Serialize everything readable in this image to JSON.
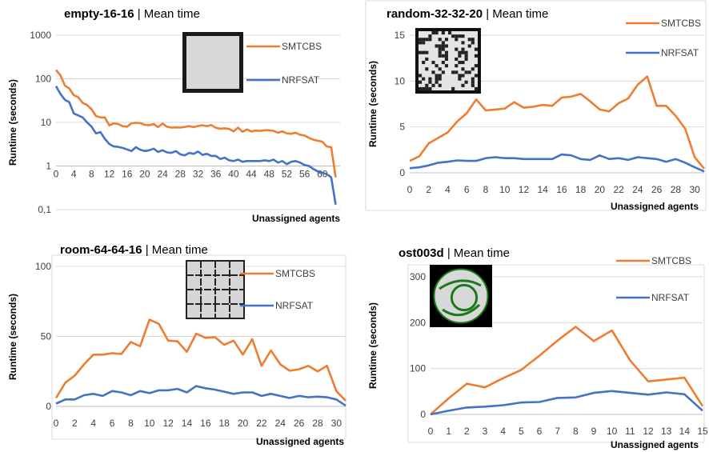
{
  "colors": {
    "smtcbs": "#ED7D31",
    "nrfsat": "#4472C4",
    "grid": "#D9D9D9",
    "axis": "#BFBFBF"
  },
  "chart_data": [
    {
      "type": "line",
      "title_bold": "empty-16-16",
      "title_rest": "| Mean time",
      "ylabel": "Runtime (seconds)",
      "xlabel": "Unassigned agents",
      "yscale": "log",
      "ylim": [
        0.1,
        1000
      ],
      "yticks": [
        0.1,
        1,
        10,
        100,
        1000
      ],
      "ytick_labels": [
        "0,1",
        "1",
        "10",
        "100",
        "1000"
      ],
      "xlim": [
        0,
        64
      ],
      "xticks": [
        0,
        4,
        8,
        12,
        16,
        20,
        24,
        28,
        32,
        36,
        40,
        44,
        48,
        52,
        56,
        60
      ],
      "thumbnail": "empty-grid-map",
      "x": [
        0,
        1,
        2,
        3,
        4,
        5,
        6,
        7,
        8,
        9,
        10,
        11,
        12,
        13,
        14,
        15,
        16,
        17,
        18,
        19,
        20,
        21,
        22,
        23,
        24,
        25,
        26,
        27,
        28,
        29,
        30,
        31,
        32,
        33,
        34,
        35,
        36,
        37,
        38,
        39,
        40,
        41,
        42,
        43,
        44,
        45,
        46,
        47,
        48,
        49,
        50,
        51,
        52,
        53,
        54,
        55,
        56,
        57,
        58,
        59,
        60,
        61,
        62,
        63
      ],
      "series": [
        {
          "name": "SMTCBS",
          "values": [
            160,
            120,
            70,
            60,
            42,
            38,
            28,
            25,
            20,
            14,
            13,
            13,
            8.5,
            9.5,
            9.2,
            8.2,
            8,
            9.5,
            9.8,
            9.6,
            8.8,
            8.6,
            9.2,
            7.8,
            9.4,
            8,
            7.6,
            7.7,
            7.6,
            7.9,
            8.2,
            7.8,
            8.3,
            8.6,
            8.2,
            8.7,
            7.5,
            7.2,
            7.3,
            7.1,
            6.2,
            7.6,
            6.1,
            6.9,
            6.2,
            6.5,
            6.4,
            6.6,
            6.6,
            6.4,
            5.8,
            6.2,
            5.6,
            5.5,
            5.8,
            5.2,
            5,
            4.4,
            4,
            3.8,
            3.6,
            2.8,
            2.7,
            0.55
          ]
        },
        {
          "name": "NRFSAT",
          "values": [
            68,
            45,
            33,
            29,
            16,
            14.5,
            13,
            10,
            8,
            5.6,
            6,
            4.2,
            3.2,
            2.8,
            2.75,
            2.6,
            2.4,
            2.2,
            2.7,
            2.35,
            2.2,
            2.3,
            2.5,
            2.1,
            2.3,
            2.05,
            2,
            2.2,
            1.85,
            1.75,
            2.0,
            1.9,
            2.15,
            1.8,
            1.9,
            1.7,
            1.7,
            1.45,
            1.55,
            1.35,
            1.3,
            1.4,
            1.25,
            1.3,
            1.3,
            1.3,
            1.3,
            1.35,
            1.3,
            1.4,
            1.2,
            1.3,
            1.1,
            1.25,
            1.3,
            1.2,
            1.05,
            1.0,
            0.85,
            0.75,
            0.7,
            0.65,
            0.55,
            0.13
          ]
        }
      ]
    },
    {
      "type": "line",
      "title_bold": "random-32-32-20",
      "title_rest": "| Mean time",
      "ylabel": "Runtime (seconds)",
      "xlabel": "Unassigned agents",
      "ylim": [
        0,
        15
      ],
      "yticks": [
        0,
        5,
        10,
        15
      ],
      "xlim": [
        0,
        31
      ],
      "xticks": [
        0,
        2,
        4,
        6,
        8,
        10,
        12,
        14,
        16,
        18,
        20,
        22,
        24,
        26,
        28,
        30
      ],
      "thumbnail": "random-grid-map",
      "x": [
        0,
        1,
        2,
        3,
        4,
        5,
        6,
        7,
        8,
        9,
        10,
        11,
        12,
        13,
        14,
        15,
        16,
        17,
        18,
        19,
        20,
        21,
        22,
        23,
        24,
        25,
        26,
        27,
        28,
        29,
        30,
        31
      ],
      "series": [
        {
          "name": "SMTCBS",
          "values": [
            1.3,
            1.8,
            3.2,
            3.8,
            4.4,
            5.6,
            6.5,
            8.0,
            6.8,
            6.9,
            7.0,
            7.7,
            7.1,
            7.2,
            7.4,
            7.3,
            8.2,
            8.3,
            8.6,
            7.8,
            6.9,
            6.7,
            7.6,
            8.1,
            9.6,
            10.5,
            7.3,
            7.3,
            6.2,
            4.8,
            1.7,
            0.45
          ]
        },
        {
          "name": "NRFSAT",
          "values": [
            0.5,
            0.6,
            0.8,
            1.1,
            1.2,
            1.35,
            1.3,
            1.3,
            1.6,
            1.7,
            1.6,
            1.6,
            1.5,
            1.5,
            1.5,
            1.5,
            2.0,
            1.9,
            1.5,
            1.4,
            1.9,
            1.5,
            1.6,
            1.4,
            1.7,
            1.6,
            1.5,
            1.2,
            1.5,
            1.1,
            0.6,
            0.15
          ]
        }
      ]
    },
    {
      "type": "line",
      "title_bold": "room-64-64-16",
      "title_rest": "| Mean time",
      "ylabel": "Runtime (seconds)",
      "xlabel": "Unassigned agents",
      "ylim": [
        0,
        100
      ],
      "yticks": [
        0,
        50,
        100
      ],
      "xlim": [
        0,
        31
      ],
      "xticks": [
        0,
        2,
        4,
        6,
        8,
        10,
        12,
        14,
        16,
        18,
        20,
        22,
        24,
        26,
        28,
        30
      ],
      "thumbnail": "room-grid-map",
      "x": [
        0,
        1,
        2,
        3,
        4,
        5,
        6,
        7,
        8,
        9,
        10,
        11,
        12,
        13,
        14,
        15,
        16,
        17,
        18,
        19,
        20,
        21,
        22,
        23,
        24,
        25,
        26,
        27,
        28,
        29,
        30,
        31
      ],
      "series": [
        {
          "name": "SMTCBS",
          "values": [
            6,
            17,
            22,
            30,
            37,
            37,
            38,
            37.5,
            46,
            43,
            62,
            59,
            47,
            46.5,
            39,
            52,
            49,
            49.5,
            44,
            47,
            37,
            48,
            29,
            40,
            30,
            25.5,
            26.5,
            29,
            25,
            29,
            11,
            4
          ]
        },
        {
          "name": "NRFSAT",
          "values": [
            2,
            5,
            5,
            8,
            9,
            7.5,
            11,
            10,
            8,
            11,
            9.5,
            11.5,
            11.5,
            12.5,
            10,
            14.5,
            13,
            12,
            10.5,
            9,
            10,
            10,
            7.5,
            9,
            7.5,
            6,
            7.5,
            6.5,
            7,
            6.5,
            5,
            0.5
          ]
        }
      ]
    },
    {
      "type": "line",
      "title_bold": "ost003d",
      "title_rest": "| Mean time",
      "ylabel": "Runtime (seconds)",
      "xlabel": "Unassigned agents",
      "ylim": [
        0,
        300
      ],
      "yticks": [
        0,
        100,
        200,
        300
      ],
      "xlim": [
        0,
        15
      ],
      "xticks": [
        0,
        1,
        2,
        3,
        4,
        5,
        6,
        7,
        8,
        9,
        10,
        11,
        12,
        13,
        14,
        15
      ],
      "thumbnail": "ost003d-map",
      "x": [
        0,
        1,
        2,
        3,
        4,
        5,
        6,
        7,
        8,
        9,
        10,
        11,
        12,
        13,
        14,
        15
      ],
      "series": [
        {
          "name": "SMTCBS",
          "values": [
            0,
            35,
            67,
            59,
            79,
            97,
            128,
            161,
            191,
            160,
            183,
            118,
            72,
            76,
            80,
            18
          ]
        },
        {
          "name": "NRFSAT",
          "values": [
            0,
            8,
            15,
            17,
            20,
            26,
            27,
            36,
            37,
            47,
            51,
            47,
            43,
            48,
            44,
            8
          ]
        }
      ]
    }
  ]
}
